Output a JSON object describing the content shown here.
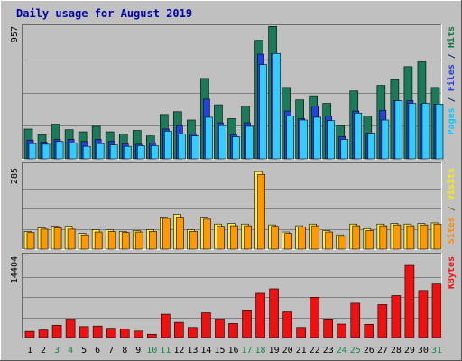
{
  "chart_data": {
    "type": "bar",
    "title": "Daily usage for August 2019",
    "x": [
      "1",
      "2",
      "3",
      "4",
      "5",
      "6",
      "7",
      "8",
      "9",
      "10",
      "11",
      "12",
      "13",
      "14",
      "15",
      "16",
      "17",
      "18",
      "19",
      "20",
      "21",
      "22",
      "23",
      "24",
      "25",
      "26",
      "27",
      "28",
      "29",
      "30",
      "31"
    ],
    "weekend_days": [
      3,
      4,
      10,
      11,
      17,
      18,
      24,
      25,
      31
    ],
    "panels": [
      {
        "name": "top",
        "ymax_label": "957",
        "ymax": 957,
        "ylabel_parts": [
          {
            "text": "Pages",
            "color": "#00ccff"
          },
          {
            "text": " / ",
            "color": "#003366"
          },
          {
            "text": "Files",
            "color": "#2244dd"
          },
          {
            "text": " / ",
            "color": "#003366"
          },
          {
            "text": "Hits",
            "color": "#117744"
          }
        ],
        "series": [
          {
            "name": "Hits",
            "color": "#1a7a5a",
            "values": [
              215,
              175,
              250,
              210,
              195,
              235,
              195,
              180,
              205,
              165,
              320,
              340,
              280,
              580,
              390,
              290,
              380,
              855,
              955,
              515,
              425,
              455,
              400,
              240,
              490,
              310,
              530,
              570,
              665,
              700,
              515
            ]
          },
          {
            "name": "Files",
            "color": "#2244dd",
            "values": [
              135,
              120,
              140,
              140,
              125,
              140,
              125,
              110,
              105,
              115,
              215,
              240,
              180,
              430,
              260,
              175,
              260,
              755,
              760,
              345,
              290,
              380,
              310,
              160,
              345,
              185,
              350,
              420,
              420,
              395,
              395
            ]
          },
          {
            "name": "Pages",
            "color": "#33ccff",
            "values": [
              110,
              105,
              125,
              115,
              90,
              110,
              100,
              90,
              95,
              95,
              200,
              180,
              165,
              300,
              240,
              160,
              235,
              680,
              760,
              310,
              280,
              300,
              275,
              140,
              330,
              185,
              280,
              420,
              400,
              400,
              395
            ]
          }
        ]
      },
      {
        "name": "middle",
        "ymax_label": "285",
        "ymax": 285,
        "ylabel_parts": [
          {
            "text": "Sites",
            "color": "#ff8800"
          },
          {
            "text": " / ",
            "color": "#886600"
          },
          {
            "text": "Visits",
            "color": "#ffee00"
          }
        ],
        "series": [
          {
            "name": "Visits",
            "color": "#ffee44",
            "values": [
              62,
              75,
              80,
              80,
              55,
              68,
              68,
              62,
              65,
              68,
              112,
              122,
              68,
              112,
              88,
              90,
              88,
              272,
              85,
              60,
              82,
              88,
              65,
              50,
              88,
              72,
              88,
              90,
              88,
              90,
              92
            ]
          },
          {
            "name": "Sites",
            "color": "#ff9900",
            "values": [
              58,
              70,
              75,
              70,
              50,
              60,
              62,
              58,
              60,
              62,
              108,
              112,
              62,
              105,
              80,
              82,
              82,
              262,
              80,
              55,
              78,
              82,
              60,
              45,
              82,
              65,
              82,
              85,
              82,
              85,
              88
            ]
          }
        ]
      },
      {
        "name": "bottom",
        "ymax_label": "14404",
        "ymax": 14404,
        "ylabel_parts": [
          {
            "text": "KBytes",
            "color": "#ee1111"
          }
        ],
        "series": [
          {
            "name": "KBytes",
            "color": "#ee1111",
            "values": [
              1100,
              1350,
              2200,
              3200,
              1950,
              2050,
              1650,
              1550,
              1150,
              600,
              4150,
              2700,
              1800,
              4400,
              3200,
              2500,
              4750,
              7850,
              8650,
              4550,
              1800,
              7150,
              3150,
              2400,
              6100,
              2350,
              5850,
              7450,
              12800,
              8350,
              9500
            ]
          }
        ]
      }
    ]
  }
}
